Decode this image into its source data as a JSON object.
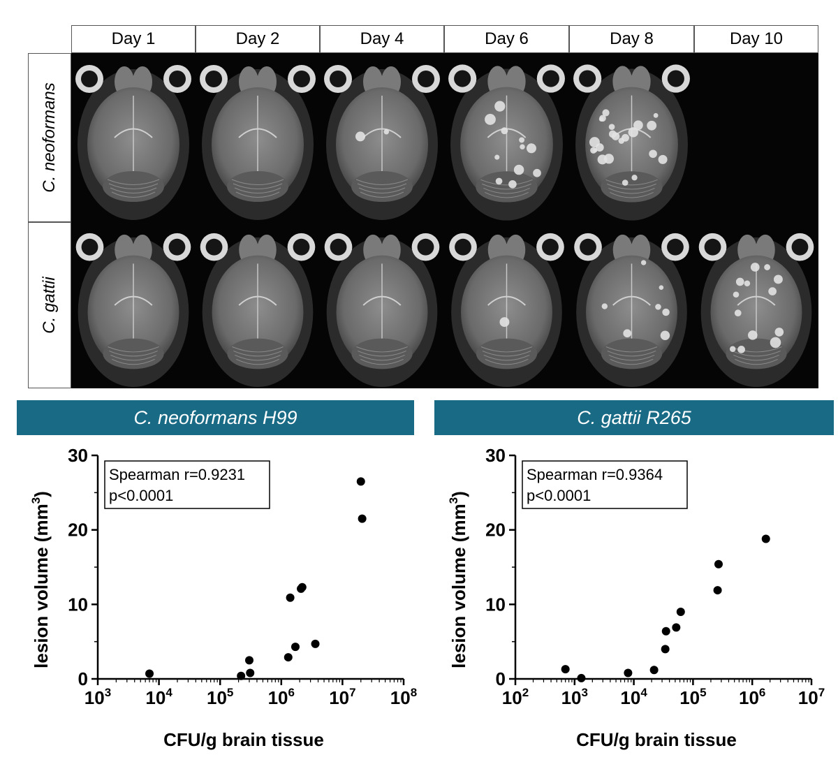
{
  "mri": {
    "days": [
      "Day 1",
      "Day 2",
      "Day 4",
      "Day 6",
      "Day 8",
      "Day 10"
    ],
    "rows": [
      {
        "label": "C. neoformans",
        "present": [
          true,
          true,
          true,
          true,
          true,
          false
        ],
        "lesions": [
          0,
          0,
          0.1,
          0.5,
          1.0,
          0
        ]
      },
      {
        "label": "C. gattii",
        "present": [
          true,
          true,
          true,
          true,
          true,
          true
        ],
        "lesions": [
          0,
          0,
          0,
          0.05,
          0.3,
          0.6
        ]
      }
    ]
  },
  "chart_data": [
    {
      "type": "scatter",
      "title": "C. neoformans H99",
      "xlabel": "CFU/g brain tissue",
      "ylabel": "lesion volume (mm3)",
      "xscale": "log",
      "xlim": [
        1000,
        100000000
      ],
      "ylim": [
        0,
        30
      ],
      "xticks": [
        1000,
        10000,
        100000,
        1000000,
        10000000,
        100000000
      ],
      "yticks": [
        0,
        10,
        20,
        30
      ],
      "annotation": [
        "Spearman r=0.9231",
        "p<0.0001"
      ],
      "points": [
        {
          "x": 7000,
          "y": 0.7
        },
        {
          "x": 220000,
          "y": 0.4
        },
        {
          "x": 300000,
          "y": 2.5
        },
        {
          "x": 310000,
          "y": 0.8
        },
        {
          "x": 1300000,
          "y": 2.9
        },
        {
          "x": 1400000,
          "y": 10.9
        },
        {
          "x": 1700000,
          "y": 4.3
        },
        {
          "x": 2100000,
          "y": 12.1
        },
        {
          "x": 2200000,
          "y": 12.3
        },
        {
          "x": 3600000,
          "y": 4.7
        },
        {
          "x": 20000000,
          "y": 26.5
        },
        {
          "x": 21000000,
          "y": 21.5
        }
      ]
    },
    {
      "type": "scatter",
      "title": "C. gattii R265",
      "xlabel": "CFU/g brain tissue",
      "ylabel": "lesion volume (mm3)",
      "xscale": "log",
      "xlim": [
        100,
        10000000
      ],
      "ylim": [
        0,
        30
      ],
      "xticks": [
        100,
        1000,
        10000,
        100000,
        1000000,
        10000000
      ],
      "yticks": [
        0,
        10,
        20,
        30
      ],
      "annotation": [
        "Spearman r=0.9364",
        "p<0.0001"
      ],
      "points": [
        {
          "x": 700,
          "y": 1.3
        },
        {
          "x": 1300,
          "y": 0.1
        },
        {
          "x": 8000,
          "y": 0.8
        },
        {
          "x": 22000,
          "y": 1.2
        },
        {
          "x": 34000,
          "y": 4.0
        },
        {
          "x": 35000,
          "y": 6.4
        },
        {
          "x": 52000,
          "y": 6.9
        },
        {
          "x": 62000,
          "y": 9.0
        },
        {
          "x": 260000,
          "y": 11.9
        },
        {
          "x": 270000,
          "y": 15.4
        },
        {
          "x": 1700000,
          "y": 18.8
        }
      ]
    }
  ]
}
